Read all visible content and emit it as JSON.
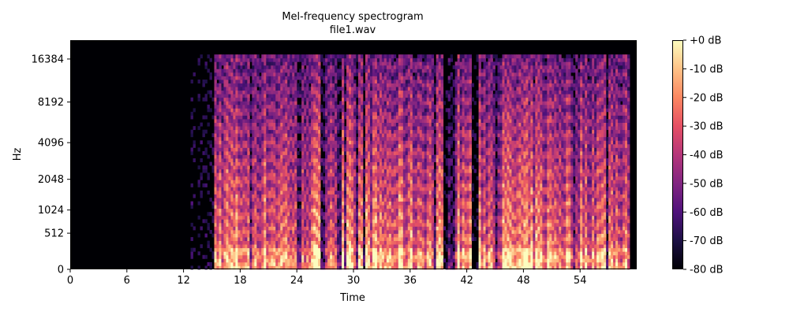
{
  "chart_data": {
    "type": "heatmap",
    "title": "Mel-frequency spectrogram",
    "subtitle": "file1.wav",
    "xlabel": "Time",
    "ylabel": "Hz",
    "x_ticks": [
      0,
      6,
      12,
      18,
      24,
      30,
      36,
      42,
      48,
      54
    ],
    "xlim": [
      0,
      60
    ],
    "y_ticks": [
      {
        "label": "0",
        "hz": 0
      },
      {
        "label": "512",
        "hz": 512
      },
      {
        "label": "1024",
        "hz": 1024
      },
      {
        "label": "2048",
        "hz": 2048
      },
      {
        "label": "4096",
        "hz": 4096
      },
      {
        "label": "8192",
        "hz": 8192
      },
      {
        "label": "16384",
        "hz": 16384
      }
    ],
    "y_scale": "mel",
    "ylim": [
      0,
      22050
    ],
    "colorbar": {
      "ticks": [
        "+0 dB",
        "-10 dB",
        "-20 dB",
        "-30 dB",
        "-40 dB",
        "-50 dB",
        "-60 dB",
        "-70 dB",
        "-80 dB"
      ],
      "values": [
        0,
        -10,
        -20,
        -30,
        -40,
        -50,
        -60,
        -70,
        -80
      ],
      "range": [
        -80,
        0
      ],
      "colormap": "magma"
    },
    "sound_onset_s": 15.2,
    "content_max_hz": 18000,
    "silence_gaps_s": [
      [
        39.5,
        40.1
      ],
      [
        42.4,
        43.3
      ],
      [
        13.6,
        15.2
      ]
    ]
  },
  "colors": {
    "magma_stops": [
      "#000004",
      "#1c1044",
      "#4f127b",
      "#812581",
      "#b5367a",
      "#e55064",
      "#fb8761",
      "#fec287",
      "#fcfdbf"
    ]
  }
}
